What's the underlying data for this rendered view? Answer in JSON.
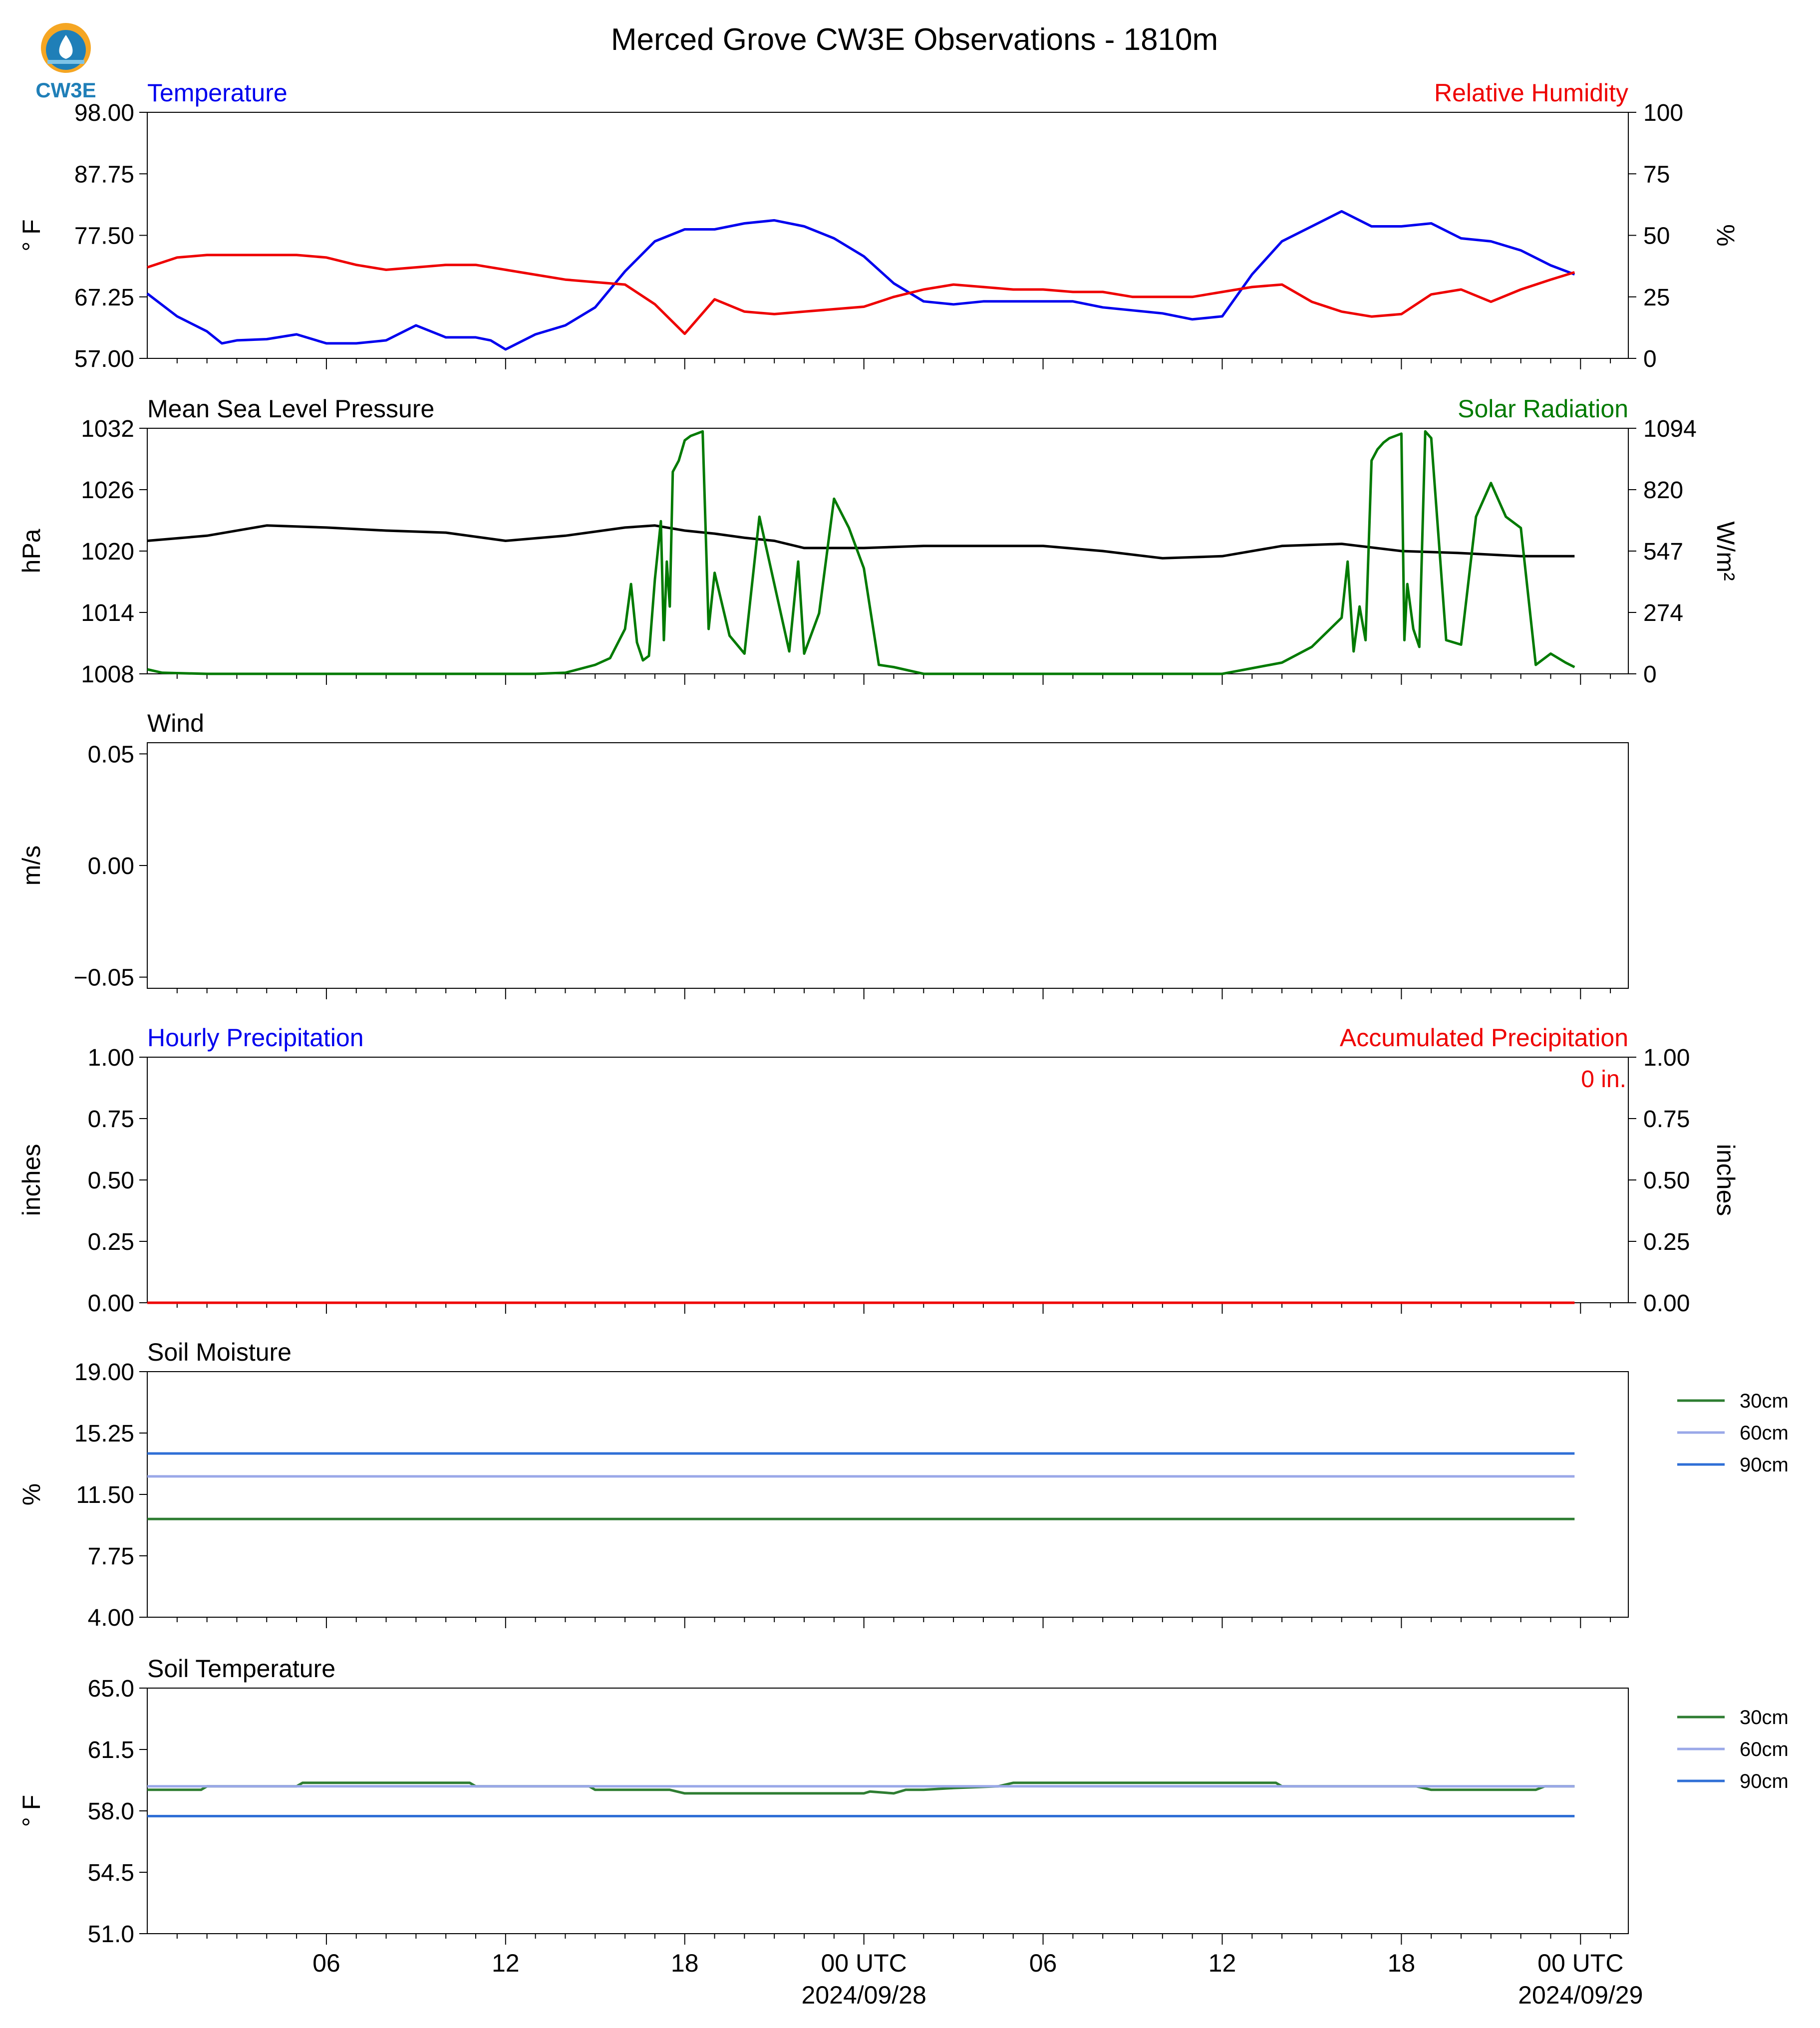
{
  "page": {
    "title": "Merced Grove CW3E Observations - 1810m",
    "logo_text": "CW3E"
  },
  "colors": {
    "temperature": "#0000ee",
    "humidity": "#ee0000",
    "pressure": "#000000",
    "solar": "#007a00",
    "soil_30": "#2e7d32",
    "soil_60": "#9aa8e8",
    "soil_90": "#2f6fd6"
  },
  "time_axis": {
    "ticks": [
      "06",
      "12",
      "18",
      "00 UTC",
      "06",
      "12",
      "18",
      "00 UTC"
    ],
    "dates": [
      "2024/09/28",
      "2024/09/29"
    ]
  },
  "chart_data": [
    {
      "id": "temp",
      "type": "line",
      "title": "Temperature",
      "title_right": "Relative Humidity",
      "ylabel": "° F",
      "ylabel_right": "%",
      "ylim": [
        57.0,
        98.0
      ],
      "ylim_right": [
        0,
        100
      ],
      "yticks": [
        "98.00",
        "87.75",
        "77.50",
        "67.25",
        "57.00"
      ],
      "yticks_right": [
        "100",
        "75",
        "50",
        "25",
        "0"
      ],
      "series": [
        {
          "color": "#0000ee",
          "axis": "left",
          "x": [
            0,
            1,
            2,
            2.5,
            3,
            4,
            5,
            6,
            7,
            8,
            9,
            10,
            11,
            11.5,
            12,
            13,
            14,
            15,
            16,
            17,
            18,
            19,
            20,
            21,
            22,
            23,
            24,
            25,
            26,
            27,
            28,
            29,
            30,
            31,
            32,
            33,
            34,
            35,
            36,
            37,
            38,
            39,
            40,
            41,
            42,
            43,
            44,
            45,
            46,
            47,
            47.8
          ],
          "y": [
            67.8,
            64,
            61.5,
            59.5,
            60,
            60.2,
            61,
            59.5,
            59.5,
            60,
            62.5,
            60.5,
            60.5,
            60,
            58.5,
            61,
            62.5,
            65.5,
            71.5,
            76.5,
            78.5,
            78.5,
            79.5,
            80,
            79,
            77,
            74,
            69.5,
            66.5,
            66,
            66.5,
            66.5,
            66.5,
            66.5,
            65.5,
            65,
            64.5,
            63.5,
            64,
            71,
            76.5,
            79,
            81.5,
            79,
            79,
            79.5,
            77,
            76.5,
            75,
            72.5,
            71
          ]
        },
        {
          "color": "#ee0000",
          "axis": "right",
          "x": [
            0,
            1,
            2,
            3,
            4,
            5,
            6,
            7,
            8,
            9,
            10,
            11,
            12,
            13,
            14,
            15,
            16,
            17,
            18,
            19,
            20,
            21,
            22,
            23,
            24,
            25,
            26,
            27,
            28,
            29,
            30,
            31,
            32,
            33,
            34,
            35,
            36,
            37,
            38,
            39,
            40,
            41,
            42,
            43,
            44,
            45,
            46,
            47,
            47.8
          ],
          "y": [
            37,
            41,
            42,
            42,
            42,
            42,
            41,
            38,
            36,
            37,
            38,
            38,
            36,
            34,
            32,
            31,
            30,
            22,
            10,
            24,
            19,
            18,
            19,
            20,
            21,
            25,
            28,
            30,
            29,
            28,
            28,
            27,
            27,
            25,
            25,
            25,
            27,
            29,
            30,
            23,
            19,
            17,
            18,
            26,
            28,
            23,
            28,
            32,
            35
          ]
        }
      ]
    },
    {
      "id": "pressure",
      "type": "line",
      "title": "Mean Sea Level Pressure",
      "title_right": "Solar Radiation",
      "ylabel": "hPa",
      "ylabel_right": "W/m²",
      "ylim": [
        1008,
        1032
      ],
      "ylim_right": [
        0,
        1094
      ],
      "yticks": [
        "1032",
        "1026",
        "1020",
        "1014",
        "1008"
      ],
      "yticks_right": [
        "1094",
        "820",
        "547",
        "274",
        "0"
      ],
      "series": [
        {
          "color": "#000000",
          "axis": "left",
          "x": [
            0,
            2,
            4,
            6,
            8,
            10,
            12,
            14,
            16,
            17,
            18,
            19,
            20,
            21,
            22,
            23,
            24,
            26,
            28,
            30,
            32,
            34,
            36,
            38,
            40,
            42,
            44,
            46,
            47.8
          ],
          "y": [
            1021,
            1021.5,
            1022.5,
            1022.3,
            1022,
            1021.8,
            1021,
            1021.5,
            1022.3,
            1022.5,
            1022,
            1021.7,
            1021.3,
            1021,
            1020.3,
            1020.3,
            1020.3,
            1020.5,
            1020.5,
            1020.5,
            1020,
            1019.3,
            1019.5,
            1020.5,
            1020.7,
            1020,
            1019.8,
            1019.5,
            1019.5
          ]
        },
        {
          "color": "#007a00",
          "axis": "right",
          "x": [
            0,
            0.5,
            2,
            6,
            10,
            13,
            14,
            15,
            15.5,
            16,
            16.2,
            16.4,
            16.6,
            16.8,
            17,
            17.2,
            17.3,
            17.4,
            17.5,
            17.6,
            17.8,
            18,
            18.1,
            18.2,
            18.4,
            18.6,
            18.8,
            19,
            19.5,
            20,
            20.5,
            21.5,
            21.8,
            22,
            22.5,
            23,
            23.5,
            24,
            24.5,
            25,
            26,
            30,
            36,
            38,
            39,
            40,
            40.2,
            40.4,
            40.6,
            40.8,
            41,
            41.2,
            41.4,
            41.6,
            41.8,
            42,
            42.1,
            42.2,
            42.4,
            42.6,
            42.8,
            43,
            43.5,
            44,
            44.5,
            45,
            45.5,
            46,
            46.5,
            47,
            47.5,
            47.8
          ],
          "y": [
            20,
            5,
            0,
            0,
            0,
            0,
            5,
            40,
            70,
            200,
            400,
            140,
            60,
            80,
            420,
            680,
            150,
            500,
            300,
            900,
            950,
            1040,
            1050,
            1060,
            1070,
            1080,
            200,
            450,
            170,
            90,
            700,
            100,
            500,
            90,
            270,
            780,
            650,
            470,
            40,
            30,
            0,
            0,
            0,
            50,
            120,
            250,
            500,
            100,
            300,
            150,
            950,
            1000,
            1030,
            1050,
            1060,
            1070,
            150,
            400,
            200,
            120,
            1080,
            1050,
            150,
            130,
            700,
            850,
            700,
            650,
            40,
            90,
            50,
            30
          ]
        }
      ]
    },
    {
      "id": "wind",
      "type": "line",
      "title": "Wind",
      "ylabel": "m/s",
      "ylim": [
        -0.055,
        0.055
      ],
      "yticks": [
        "0.05",
        "0.00",
        "−0.05"
      ],
      "series": []
    },
    {
      "id": "precip",
      "type": "line",
      "title": "Hourly Precipitation",
      "title_right": "Accumulated Precipitation",
      "ylabel": "inches",
      "ylabel_right": "inches",
      "ylim": [
        0,
        1.0
      ],
      "ylim_right": [
        0,
        1.0
      ],
      "yticks": [
        "1.00",
        "0.75",
        "0.50",
        "0.25",
        "0.00"
      ],
      "yticks_right": [
        "1.00",
        "0.75",
        "0.50",
        "0.25",
        "0.00"
      ],
      "annotation": "0 in.",
      "series": [
        {
          "color": "#ee0000",
          "axis": "right",
          "x": [
            0,
            47.8
          ],
          "y": [
            0,
            0
          ]
        }
      ]
    },
    {
      "id": "soilm",
      "type": "line",
      "title": "Soil Moisture",
      "ylabel": "%",
      "ylim": [
        4.0,
        19.0
      ],
      "yticks": [
        "19.00",
        "15.25",
        "11.50",
        "7.75",
        "4.00"
      ],
      "legend": [
        "30cm",
        "60cm",
        "90cm"
      ],
      "series": [
        {
          "name": "30cm",
          "color": "#2e7d32",
          "axis": "left",
          "x": [
            0,
            47.8
          ],
          "y": [
            10.0,
            10.0
          ]
        },
        {
          "name": "60cm",
          "color": "#9aa8e8",
          "axis": "left",
          "x": [
            0,
            47.8
          ],
          "y": [
            12.6,
            12.6
          ]
        },
        {
          "name": "90cm",
          "color": "#2f6fd6",
          "axis": "left",
          "x": [
            0,
            47.8
          ],
          "y": [
            14.0,
            14.0
          ]
        }
      ]
    },
    {
      "id": "soilt",
      "type": "line",
      "title": "Soil Temperature",
      "ylabel": "° F",
      "ylim": [
        51.0,
        65.0
      ],
      "yticks": [
        "65.0",
        "61.5",
        "58.0",
        "54.5",
        "51.0"
      ],
      "legend": [
        "30cm",
        "60cm",
        "90cm"
      ],
      "series": [
        {
          "name": "30cm",
          "color": "#2e7d32",
          "axis": "left",
          "x": [
            0,
            1.8,
            2,
            5,
            5.2,
            10.2,
            10.8,
            11,
            14.8,
            15,
            17.5,
            18,
            24,
            24.2,
            25,
            25.4,
            26,
            27,
            28.5,
            29,
            29.5,
            30,
            37.8,
            38,
            42.5,
            43,
            46.5,
            46.8,
            47.8
          ],
          "y": [
            59.2,
            59.2,
            59.4,
            59.4,
            59.6,
            59.6,
            59.6,
            59.4,
            59.4,
            59.2,
            59.2,
            59.0,
            59.0,
            59.1,
            59.0,
            59.2,
            59.2,
            59.3,
            59.4,
            59.6,
            59.6,
            59.6,
            59.6,
            59.4,
            59.4,
            59.2,
            59.2,
            59.4,
            59.4
          ]
        },
        {
          "name": "60cm",
          "color": "#9aa8e8",
          "axis": "left",
          "x": [
            0,
            47.8
          ],
          "y": [
            59.4,
            59.4
          ]
        },
        {
          "name": "90cm",
          "color": "#2f6fd6",
          "axis": "left",
          "x": [
            0,
            47.8
          ],
          "y": [
            57.7,
            57.7
          ]
        }
      ]
    }
  ]
}
